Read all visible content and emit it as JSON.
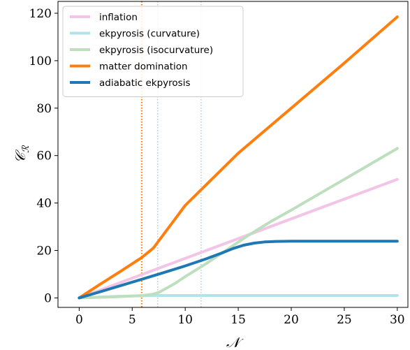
{
  "chart_data": {
    "type": "line",
    "xlabel": "𝒩",
    "ylabel": "𝒞",
    "ylabel_sub": "ℛ",
    "xlim": [
      -2,
      31
    ],
    "ylim": [
      -4,
      125
    ],
    "xticks": [
      0,
      5,
      10,
      15,
      20,
      25,
      30
    ],
    "yticks": [
      0,
      20,
      40,
      60,
      80,
      100,
      120
    ],
    "grid": false,
    "legend_position": "top-left",
    "vlines": [
      {
        "x": 5.9,
        "color": "#ff7f0e",
        "opacity": 1.0,
        "width": 2.2
      },
      {
        "x": 7.4,
        "color": "#9ec9e2",
        "opacity": 0.9,
        "width": 1.4
      },
      {
        "x": 11.5,
        "color": "#9ec9e2",
        "opacity": 0.9,
        "width": 1.4
      }
    ],
    "series": [
      {
        "name": "inflation",
        "color": "#f2c4e6",
        "width": 4,
        "x": [
          0,
          30
        ],
        "y": [
          0,
          50
        ]
      },
      {
        "name": "ekpyrosis (curvature)",
        "color": "#b3e3ea",
        "width": 4,
        "x": [
          0,
          4,
          6,
          7.4,
          10,
          20,
          30
        ],
        "y": [
          0,
          0.7,
          0.9,
          1,
          1,
          1,
          1
        ]
      },
      {
        "name": "ekpyrosis (isocurvature)",
        "color": "#bddfbd",
        "width": 4,
        "x": [
          0,
          3,
          5,
          6,
          7,
          7.5,
          8,
          9,
          10,
          12,
          14,
          16,
          18,
          20,
          25,
          30
        ],
        "y": [
          0,
          0.4,
          0.8,
          1,
          1.6,
          2.3,
          3.5,
          6,
          9,
          14.5,
          20.5,
          26.5,
          32,
          37,
          50,
          63
        ]
      },
      {
        "name": "matter domination",
        "color": "#ff7f0e",
        "width": 4,
        "x": [
          0,
          2,
          4,
          5.9,
          7,
          10,
          15,
          20,
          25,
          30
        ],
        "y": [
          0,
          5.8,
          11.5,
          17,
          21,
          39,
          61,
          80,
          99,
          118.5
        ]
      },
      {
        "name": "adiabatic ekpyrosis",
        "color": "#1f77b4",
        "width": 4,
        "x": [
          0,
          2,
          4,
          6,
          8,
          10,
          12,
          13.5,
          14.5,
          15.5,
          16.5,
          17.5,
          18.5,
          20,
          25,
          30
        ],
        "y": [
          0,
          2.6,
          5.3,
          8,
          10.7,
          13.5,
          16.5,
          19,
          20.8,
          22.2,
          23.1,
          23.6,
          23.8,
          23.9,
          23.9,
          23.9
        ]
      }
    ]
  }
}
